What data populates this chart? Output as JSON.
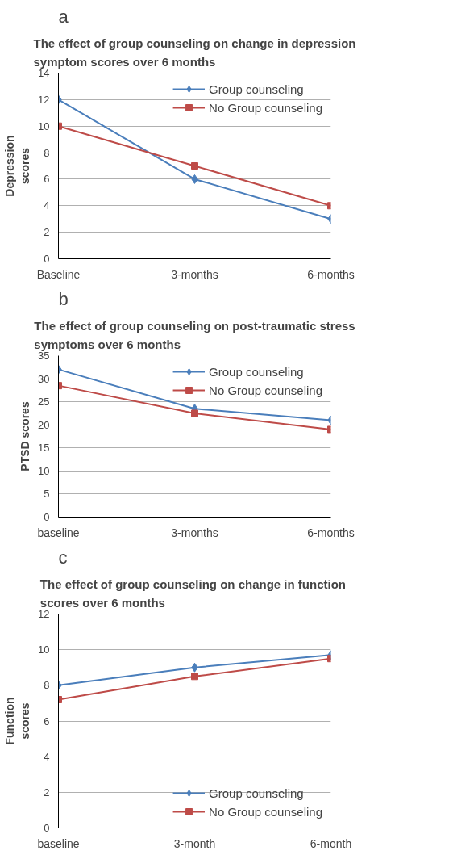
{
  "chart_data": [
    {
      "type": "line",
      "title": "The effect of group counseling on change in depression symptom scores over 6 months",
      "ylabel": "Depression scores",
      "categories": [
        "Baseline",
        "3-months",
        "6-months"
      ],
      "ylim": [
        0,
        14
      ],
      "yticks": [
        0,
        2,
        4,
        6,
        8,
        10,
        12,
        14
      ],
      "grid": "y",
      "legend": "top right",
      "annotations": [
        "a"
      ],
      "series": [
        {
          "name": "Group counseling",
          "color": "#4a7ebb",
          "marker": "diamond",
          "values": [
            12,
            6,
            3
          ]
        },
        {
          "name": "No Group counseling",
          "color": "#be4b48",
          "marker": "square",
          "values": [
            10,
            7,
            4
          ]
        }
      ]
    },
    {
      "type": "line",
      "title": "The effect of group counseling on post-traumatic stress symptoms over 6 months",
      "ylabel": "PTSD scores",
      "categories": [
        "baseline",
        "3-months",
        "6-months"
      ],
      "ylim": [
        0,
        35
      ],
      "yticks": [
        0,
        5,
        10,
        15,
        20,
        25,
        30,
        35
      ],
      "grid": "y",
      "legend": "top right",
      "annotations": [
        "b"
      ],
      "series": [
        {
          "name": "Group counseling",
          "color": "#4a7ebb",
          "marker": "diamond",
          "values": [
            32,
            23.5,
            21
          ]
        },
        {
          "name": "No Group counseling",
          "color": "#be4b48",
          "marker": "square",
          "values": [
            28.5,
            22.5,
            19
          ]
        }
      ]
    },
    {
      "type": "line",
      "title": "The effect of  group counseling on change in function scores  over 6 months",
      "ylabel": "Function scores",
      "categories": [
        "baseline",
        "3-month",
        "6-month"
      ],
      "ylim": [
        0,
        12
      ],
      "yticks": [
        0,
        2,
        4,
        6,
        8,
        10,
        12
      ],
      "grid": "y",
      "legend": "bottom right",
      "annotations": [
        "c"
      ],
      "series": [
        {
          "name": "Group counseling",
          "color": "#4a7ebb",
          "marker": "diamond",
          "values": [
            8,
            9,
            9.7
          ]
        },
        {
          "name": "No Group counseling",
          "color": "#be4b48",
          "marker": "square",
          "values": [
            7.2,
            8.5,
            9.5
          ]
        }
      ]
    }
  ]
}
